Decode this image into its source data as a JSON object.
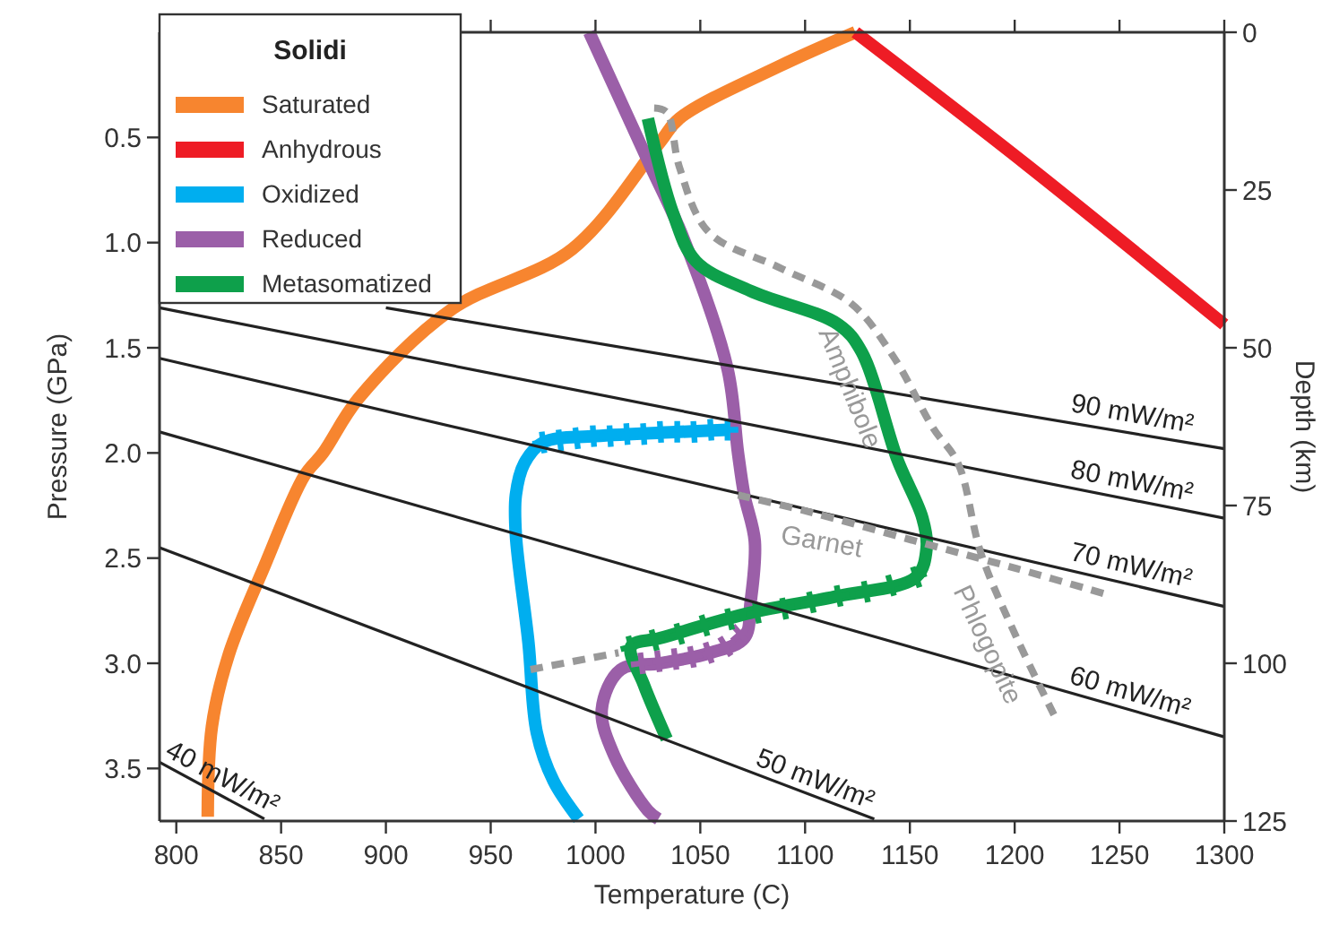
{
  "chart_data": {
    "type": "line",
    "xlabel": "Temperature (C)",
    "ylabel": "Pressure (GPa)",
    "y2label": "Depth (km)",
    "legend": "top left",
    "legend_title": "Solidi",
    "xlim": [
      792,
      1300
    ],
    "xticks": [
      800,
      850,
      900,
      950,
      1000,
      1050,
      1100,
      1150,
      1200,
      1250,
      1300
    ],
    "ylim": [
      3.75,
      0
    ],
    "yticks": [
      0.5,
      {
        "value": 1,
        "label": "1.0"
      },
      1.5,
      {
        "value": 2,
        "label": "2.0"
      },
      2.5,
      {
        "value": 3,
        "label": "3.0"
      },
      3.5
    ],
    "y2lim": [
      125,
      0
    ],
    "y2ticks": [
      0,
      25,
      50,
      75,
      100,
      125
    ],
    "series": [
      {
        "name": "Saturated",
        "color": "#f7852f",
        "x": [
          1124,
          1088,
          1040,
          1031,
          989,
          931,
          887,
          870,
          861,
          842,
          825,
          817,
          815
        ],
        "values": [
          0,
          0.16,
          0.41,
          0.52,
          1.03,
          1.32,
          1.74,
          2.0,
          2.11,
          2.54,
          2.96,
          3.3,
          3.73
        ]
      },
      {
        "name": "Anhydrous",
        "color": "#ee1c25",
        "x": [
          1124,
          1207,
          1300
        ],
        "values": [
          0,
          0.64,
          1.39
        ]
      },
      {
        "name": "Oxidized",
        "color": "#00aeef",
        "x": [
          1063,
          1040,
          1000,
          975,
          966,
          962,
          962,
          968,
          972,
          980,
          992
        ],
        "values": [
          1.89,
          1.9,
          1.92,
          1.95,
          2.05,
          2.2,
          2.39,
          2.9,
          3.33,
          3.56,
          3.74
        ]
      },
      {
        "name": "Reduced",
        "color": "#9b5fa8",
        "x": [
          997,
          1025,
          1042,
          1063,
          1068,
          1071,
          1076,
          1074,
          1071,
          1055,
          1031,
          1012,
          1003,
          1009,
          1025,
          1030
        ],
        "values": [
          0,
          0.61,
          0.98,
          1.6,
          2.0,
          2.2,
          2.42,
          2.71,
          2.88,
          2.95,
          3.0,
          3.03,
          3.22,
          3.44,
          3.7,
          3.74
        ]
      },
      {
        "name": "Metasomatized",
        "color": "#0ea04b",
        "x": [
          1025,
          1037,
          1048,
          1074,
          1116,
          1127,
          1144,
          1156,
          1158,
          1153,
          1116,
          1074,
          1031,
          1017,
          1023,
          1034
        ],
        "values": [
          0.41,
          0.86,
          1.09,
          1.23,
          1.39,
          1.52,
          2.03,
          2.31,
          2.45,
          2.59,
          2.68,
          2.76,
          2.88,
          2.92,
          3.1,
          3.36
        ]
      },
      {
        "type": "scatter",
        "marker": "cross",
        "color": "#00aeef",
        "x": [
          975,
          983,
          991,
          999,
          1007,
          1015,
          1023,
          1031,
          1039,
          1047,
          1055,
          1063
        ],
        "values": [
          1.95,
          1.94,
          1.93,
          1.92,
          1.92,
          1.91,
          1.91,
          1.9,
          1.9,
          1.9,
          1.89,
          1.89
        ]
      },
      {
        "type": "scatter",
        "marker": "cross",
        "color": "#9b5fa8",
        "x": [
          1069,
          1062,
          1054,
          1046,
          1038,
          1030,
          1022
        ],
        "values": [
          2.86,
          2.92,
          2.95,
          2.97,
          2.98,
          2.99,
          3.0
        ]
      },
      {
        "type": "scatter",
        "marker": "cross",
        "color": "#0ea04b",
        "x": [
          1153,
          1141,
          1129,
          1116,
          1103,
          1090,
          1077,
          1064,
          1052,
          1040,
          1028,
          1017
        ],
        "values": [
          2.59,
          2.63,
          2.66,
          2.68,
          2.71,
          2.74,
          2.76,
          2.79,
          2.82,
          2.86,
          2.89,
          2.92
        ]
      },
      {
        "color": "#222222",
        "x": [
          900,
          1300
        ],
        "values": [
          1.31,
          1.98
        ]
      },
      {
        "color": "#222222",
        "x": [
          792,
          1300
        ],
        "values": [
          1.31,
          2.31
        ]
      },
      {
        "color": "#222222",
        "x": [
          792,
          1300
        ],
        "values": [
          1.55,
          2.73
        ]
      },
      {
        "color": "#222222",
        "x": [
          792,
          1300
        ],
        "values": [
          1.9,
          3.35
        ]
      },
      {
        "color": "#222222",
        "x": [
          792,
          1133
        ],
        "values": [
          2.45,
          3.74
        ]
      },
      {
        "color": "#222222",
        "x": [
          792,
          842
        ],
        "values": [
          3.47,
          3.74
        ]
      },
      {
        "color": "#999999",
        "line_style": "dashed",
        "x": [
          1028,
          1034,
          1040,
          1054,
          1088,
          1122,
          1142,
          1161,
          1173,
          1184,
          1201,
          1220
        ],
        "values": [
          0.36,
          0.38,
          0.64,
          0.95,
          1.12,
          1.29,
          1.54,
          1.88,
          2.05,
          2.48,
          2.88,
          3.27
        ]
      },
      {
        "color": "#999999",
        "line_style": "dashed",
        "x": [
          1068,
          1102,
          1153,
          1201,
          1243
        ],
        "values": [
          2.2,
          2.28,
          2.42,
          2.55,
          2.67
        ]
      },
      {
        "color": "#999999",
        "line_style": "dashed",
        "x": [
          969,
          1011
        ],
        "values": [
          3.03,
          2.95
        ]
      }
    ],
    "annotations": [
      {
        "text": "90 mW/m²",
        "x": 1258,
        "y": 1.91
      },
      {
        "text": "80 mW/m²",
        "x": 1258,
        "y": 2.23
      },
      {
        "text": "70 mW/m²",
        "x": 1258,
        "y": 2.63
      },
      {
        "text": "60 mW/m²",
        "x": 1258,
        "y": 3.23
      },
      {
        "text": "50 mW/m²",
        "x": 1109,
        "y": 3.65
      },
      {
        "text": "40 mW/m²",
        "x": 830,
        "y": 3.68
      },
      {
        "text": "Amphibole",
        "x": 1150,
        "y": 1.69
      },
      {
        "text": "Garnet",
        "x": 1108,
        "y": 2.29
      },
      {
        "text": "Phlogopite",
        "x": 1202,
        "y": 2.91
      }
    ]
  }
}
